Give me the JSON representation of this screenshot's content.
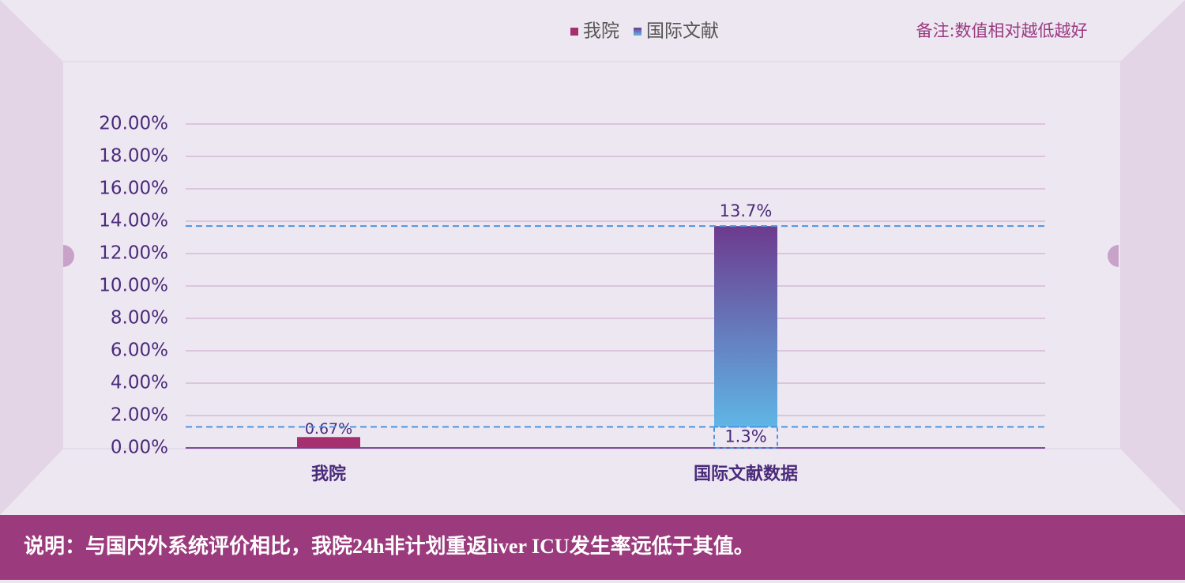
{
  "chart_data": {
    "type": "bar",
    "categories": [
      "我院",
      "国际文献数据"
    ],
    "series": [
      {
        "name": "我院",
        "color": "#a6306f",
        "values": [
          0.67,
          null
        ],
        "value_labels": [
          "0.67%",
          null
        ]
      },
      {
        "name": "国际文献",
        "color": [
          "#6d3a8e",
          "#5fb6e6"
        ],
        "values": [
          null,
          13.7
        ],
        "value_labels": [
          null,
          "13.7%"
        ],
        "low": [
          null,
          1.3
        ],
        "low_labels": [
          null,
          "1.3%"
        ]
      }
    ],
    "ylim": [
      0,
      20
    ],
    "yticks": [
      {
        "value": 0,
        "label": "0.00%"
      },
      {
        "value": 2,
        "label": "2.00%"
      },
      {
        "value": 4,
        "label": "4.00%"
      },
      {
        "value": 6,
        "label": "6.00%"
      },
      {
        "value": 8,
        "label": "8.00%"
      },
      {
        "value": 10,
        "label": "10.00%"
      },
      {
        "value": 12,
        "label": "12.00%"
      },
      {
        "value": 14,
        "label": "14.00%"
      },
      {
        "value": 16,
        "label": "16.00%"
      },
      {
        "value": 18,
        "label": "18.00%"
      },
      {
        "value": 20,
        "label": "20.00%"
      }
    ],
    "grid": true,
    "annotation": "备注:数值相对越低越好",
    "caption": "说明：与国内外系统评价相比，我院24h非计划重返liver ICU发生率远低于其值。"
  }
}
